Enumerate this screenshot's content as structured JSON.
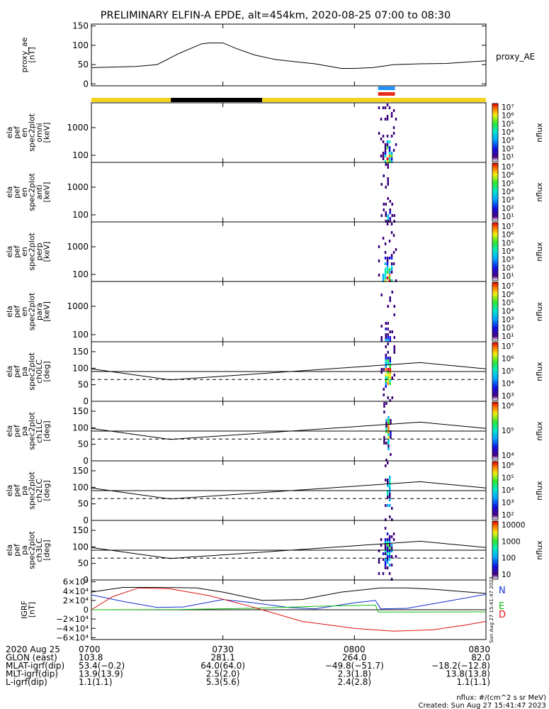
{
  "title": "PRELIMINARY ELFIN-A EPDE, alt=454km, 2020-08-25 07:00 to 08:30",
  "colors": {
    "bar_yellow": "#f5d420",
    "bar_black": "#000000",
    "marker_blue": "#1e90ff",
    "marker_red": "#e8291c",
    "bx": "#1030d0",
    "by": "#10c010",
    "bz": "#e01010"
  },
  "chart_data": [
    {
      "id": "proxy_ae",
      "type": "line",
      "ylabel": [
        "proxy_ae",
        "[nT]"
      ],
      "legend": "proxy_AE",
      "ylim": [
        -5,
        155
      ],
      "yticks": [
        0,
        50,
        100,
        150
      ],
      "x": [
        7.0,
        7.17,
        7.25,
        7.33,
        7.42,
        7.45,
        7.5,
        7.55,
        7.62,
        7.7,
        7.78,
        7.85,
        7.9,
        7.95,
        8.0,
        8.07,
        8.15,
        8.25,
        8.35,
        8.5
      ],
      "values": [
        42,
        45,
        50,
        78,
        104,
        106,
        106,
        92,
        75,
        63,
        57,
        52,
        46,
        40,
        40,
        42,
        50,
        52,
        53,
        60
      ]
    },
    {
      "id": "orbit_bar",
      "type": "bar",
      "segments": [
        {
          "from": 7.0,
          "to": 7.302,
          "color": "yellow"
        },
        {
          "from": 7.302,
          "to": 7.649,
          "color": "black"
        },
        {
          "from": 7.649,
          "to": 8.5,
          "color": "yellow"
        }
      ],
      "markers": [
        {
          "from": 8.09,
          "to": 8.154,
          "color": "blue"
        },
        {
          "from": 8.09,
          "to": 8.154,
          "color": "red"
        }
      ]
    },
    {
      "id": "en_omni",
      "type": "heatmap",
      "ylabel": [
        "ela",
        "pef",
        "en",
        "spec2plot",
        "omni",
        "[keV]"
      ],
      "yticks": [
        "100",
        "1000"
      ],
      "yscale": "log",
      "cbar_ticks": [
        "10¹",
        "10²",
        "10³",
        "10⁴",
        "10⁵",
        "10⁶",
        "10⁷"
      ],
      "cbar_label": "nflux",
      "t_range": [
        8.09,
        8.16
      ],
      "intensity": 1.0
    },
    {
      "id": "en_anti",
      "type": "heatmap",
      "ylabel": [
        "ela",
        "pef",
        "en",
        "spec2plot",
        "anti",
        "[keV]"
      ],
      "yticks": [
        "100",
        "1000"
      ],
      "yscale": "log",
      "cbar_ticks": [
        "10¹",
        "10²",
        "10³",
        "10⁴",
        "10⁵",
        "10⁶",
        "10⁷"
      ],
      "cbar_label": "nflux",
      "t_range": [
        8.1,
        8.15
      ],
      "intensity": 0.35
    },
    {
      "id": "en_perp",
      "type": "heatmap",
      "ylabel": [
        "ela",
        "pef",
        "en",
        "spec2plot",
        "perp",
        "[keV]"
      ],
      "yticks": [
        "100",
        "1000"
      ],
      "yscale": "log",
      "cbar_ticks": [
        "10¹",
        "10²",
        "10³",
        "10⁴",
        "10⁵",
        "10⁶",
        "10⁷"
      ],
      "cbar_label": "nflux",
      "t_range": [
        8.09,
        8.16
      ],
      "intensity": 1.0
    },
    {
      "id": "en_para",
      "type": "heatmap",
      "ylabel": [
        "ela",
        "pef",
        "en",
        "spec2plot",
        "para",
        "[keV]"
      ],
      "yticks": [
        "100",
        "1000"
      ],
      "yscale": "log",
      "cbar_ticks": [
        "10¹",
        "10²",
        "10³",
        "10⁴",
        "10⁵",
        "10⁶",
        "10⁷"
      ],
      "cbar_label": "nflux",
      "t_range": [
        8.1,
        8.15
      ],
      "intensity": 0.3
    },
    {
      "id": "pa_ch0",
      "type": "heatmap",
      "ylabel": [
        "ela",
        "pef",
        "pa",
        "spec2plot",
        "ch0LC",
        "[deg]"
      ],
      "yticks": [
        "0",
        "50",
        "100",
        "150"
      ],
      "ylim": [
        0,
        180
      ],
      "cbar_ticks": [
        "10³",
        "10⁴",
        "10⁵",
        "10⁶",
        "10⁷"
      ],
      "cbar_label": "nflux",
      "t_range": [
        8.1,
        8.15
      ],
      "intensity": 1.0,
      "lc_x": [
        7.0,
        7.3,
        8.25,
        8.5
      ],
      "lc_y": [
        98,
        65,
        117,
        98
      ],
      "hline": 90,
      "dashed": 66
    },
    {
      "id": "pa_ch1",
      "type": "heatmap",
      "ylabel": [
        "ela",
        "pef",
        "pa",
        "spec2plot",
        "ch1LC",
        "[deg]"
      ],
      "yticks": [
        "0",
        "50",
        "100",
        "150"
      ],
      "ylim": [
        0,
        180
      ],
      "cbar_ticks": [
        "10⁴",
        "10⁵",
        "10⁶"
      ],
      "cbar_label": "nflux",
      "t_range": [
        8.11,
        8.14
      ],
      "intensity": 0.8,
      "lc_x": [
        7.0,
        7.3,
        8.25,
        8.5
      ],
      "lc_y": [
        98,
        65,
        117,
        98
      ],
      "hline": 90,
      "dashed": 66
    },
    {
      "id": "pa_ch2",
      "type": "heatmap",
      "ylabel": [
        "ela",
        "pef",
        "pa",
        "spec2plot",
        "ch2LC",
        "[deg]"
      ],
      "yticks": [
        "0",
        "50",
        "100",
        "150"
      ],
      "ylim": [
        0,
        180
      ],
      "cbar_ticks": [
        "10²",
        "10³",
        "10⁴",
        "10⁵",
        "10⁶"
      ],
      "cbar_label": "nflux",
      "t_range": [
        8.115,
        8.14
      ],
      "intensity": 0.6,
      "lc_x": [
        7.0,
        7.3,
        8.25,
        8.5
      ],
      "lc_y": [
        98,
        65,
        117,
        98
      ],
      "hline": 90,
      "dashed": 66
    },
    {
      "id": "pa_ch3",
      "type": "heatmap",
      "ylabel": [
        "ela",
        "pef",
        "pa",
        "spec2plot",
        "ch3LC",
        "[deg]"
      ],
      "yticks": [
        "0",
        "50",
        "100",
        "150"
      ],
      "ylim": [
        0,
        180
      ],
      "cbar_ticks": [
        "10",
        "100",
        "1000",
        "10000"
      ],
      "cbar_label": "nflux",
      "t_range": [
        8.09,
        8.16
      ],
      "intensity": 0.5,
      "lc_x": [
        7.0,
        7.3,
        8.25,
        8.5
      ],
      "lc_y": [
        98,
        65,
        117,
        98
      ],
      "hline": 90,
      "dashed": 66
    },
    {
      "id": "igrf",
      "type": "line",
      "ylabel": [
        "IGRF",
        "[nT]"
      ],
      "ylim": [
        -64000,
        64000
      ],
      "yticks": [
        {
          "v": 60000,
          "t": "6×10⁴"
        },
        {
          "v": 40000,
          "t": "4×10⁴"
        },
        {
          "v": 20000,
          "t": "2×10⁴"
        },
        {
          "v": 0,
          "t": "0"
        },
        {
          "v": -20000,
          "t": "−2×10⁴"
        },
        {
          "v": -40000,
          "t": "−4×10⁴"
        },
        {
          "v": -60000,
          "t": "−6×10⁴"
        }
      ],
      "side_stamp": "Sun Aug 27 15:41:47 2023",
      "series": [
        {
          "name": "N",
          "color": "bx",
          "x": [
            7.0,
            7.12,
            7.25,
            7.35,
            7.5,
            7.6,
            7.75,
            7.85,
            8.0,
            8.08,
            8.1,
            8.2,
            8.35,
            8.5
          ],
          "values": [
            32000,
            18000,
            5000,
            6000,
            22000,
            16000,
            5000,
            2000,
            15000,
            20000,
            2000,
            3000,
            18000,
            33000
          ]
        },
        {
          "name": "E",
          "color": "by",
          "x": [
            7.0,
            7.3,
            7.6,
            7.9,
            8.08,
            8.09,
            8.25,
            8.5
          ],
          "values": [
            0,
            300,
            3000,
            8000,
            10000,
            -5000,
            -5000,
            -4500
          ]
        },
        {
          "name": "D",
          "color": "bz",
          "x": [
            7.0,
            7.08,
            7.18,
            7.3,
            7.45,
            7.6,
            7.8,
            8.0,
            8.15,
            8.3,
            8.42,
            8.5
          ],
          "values": [
            0,
            28000,
            47000,
            45000,
            30000,
            8000,
            -25000,
            -40000,
            -46000,
            -43000,
            -33000,
            -25000
          ]
        },
        {
          "name": "",
          "color": "bar_black",
          "x": [
            7.0,
            7.12,
            7.25,
            7.4,
            7.5,
            7.65,
            7.8,
            7.95,
            8.1,
            8.2,
            8.3,
            8.5
          ],
          "values": [
            38000,
            48000,
            48000,
            47000,
            38000,
            20000,
            22000,
            38000,
            47000,
            47000,
            44000,
            35000
          ]
        }
      ]
    }
  ],
  "xaxis": {
    "range": [
      7.0,
      8.5
    ],
    "ticks": [
      {
        "v": 7.0,
        "t": "0700"
      },
      {
        "v": 7.5,
        "t": "0730"
      },
      {
        "v": 8.0,
        "t": "0800"
      },
      {
        "v": 8.5,
        "t": "0830"
      }
    ]
  },
  "annotation_rows": [
    {
      "label": "2020 Aug 25",
      "vals": [
        "0700",
        "0730",
        "0800",
        "0830"
      ]
    },
    {
      "label": "GLON (east)",
      "vals": [
        "103.8",
        "281.1",
        "264.0",
        "82.0"
      ]
    },
    {
      "label": "MLAT-igrf(dip)",
      "vals": [
        "53.4(−0.2)",
        "64.0(64.0)",
        "−49.8(−51.7)",
        "−18.2(−12.8)"
      ]
    },
    {
      "label": "MLT-igrf(dip)",
      "vals": [
        "13.9(13.9)",
        "2.5(2.0)",
        "2.3(1.8)",
        "13.8(13.8)"
      ]
    },
    {
      "label": "L-igrf(dip)",
      "vals": [
        "1.1(1.1)",
        "5.3(5.6)",
        "2.4(2.8)",
        "1.1(1.1)"
      ]
    }
  ],
  "footer": {
    "units": "nflux: #/(cm^2 s sr MeV)",
    "created": "Created: Sun Aug 27 15:41:47 2023"
  }
}
